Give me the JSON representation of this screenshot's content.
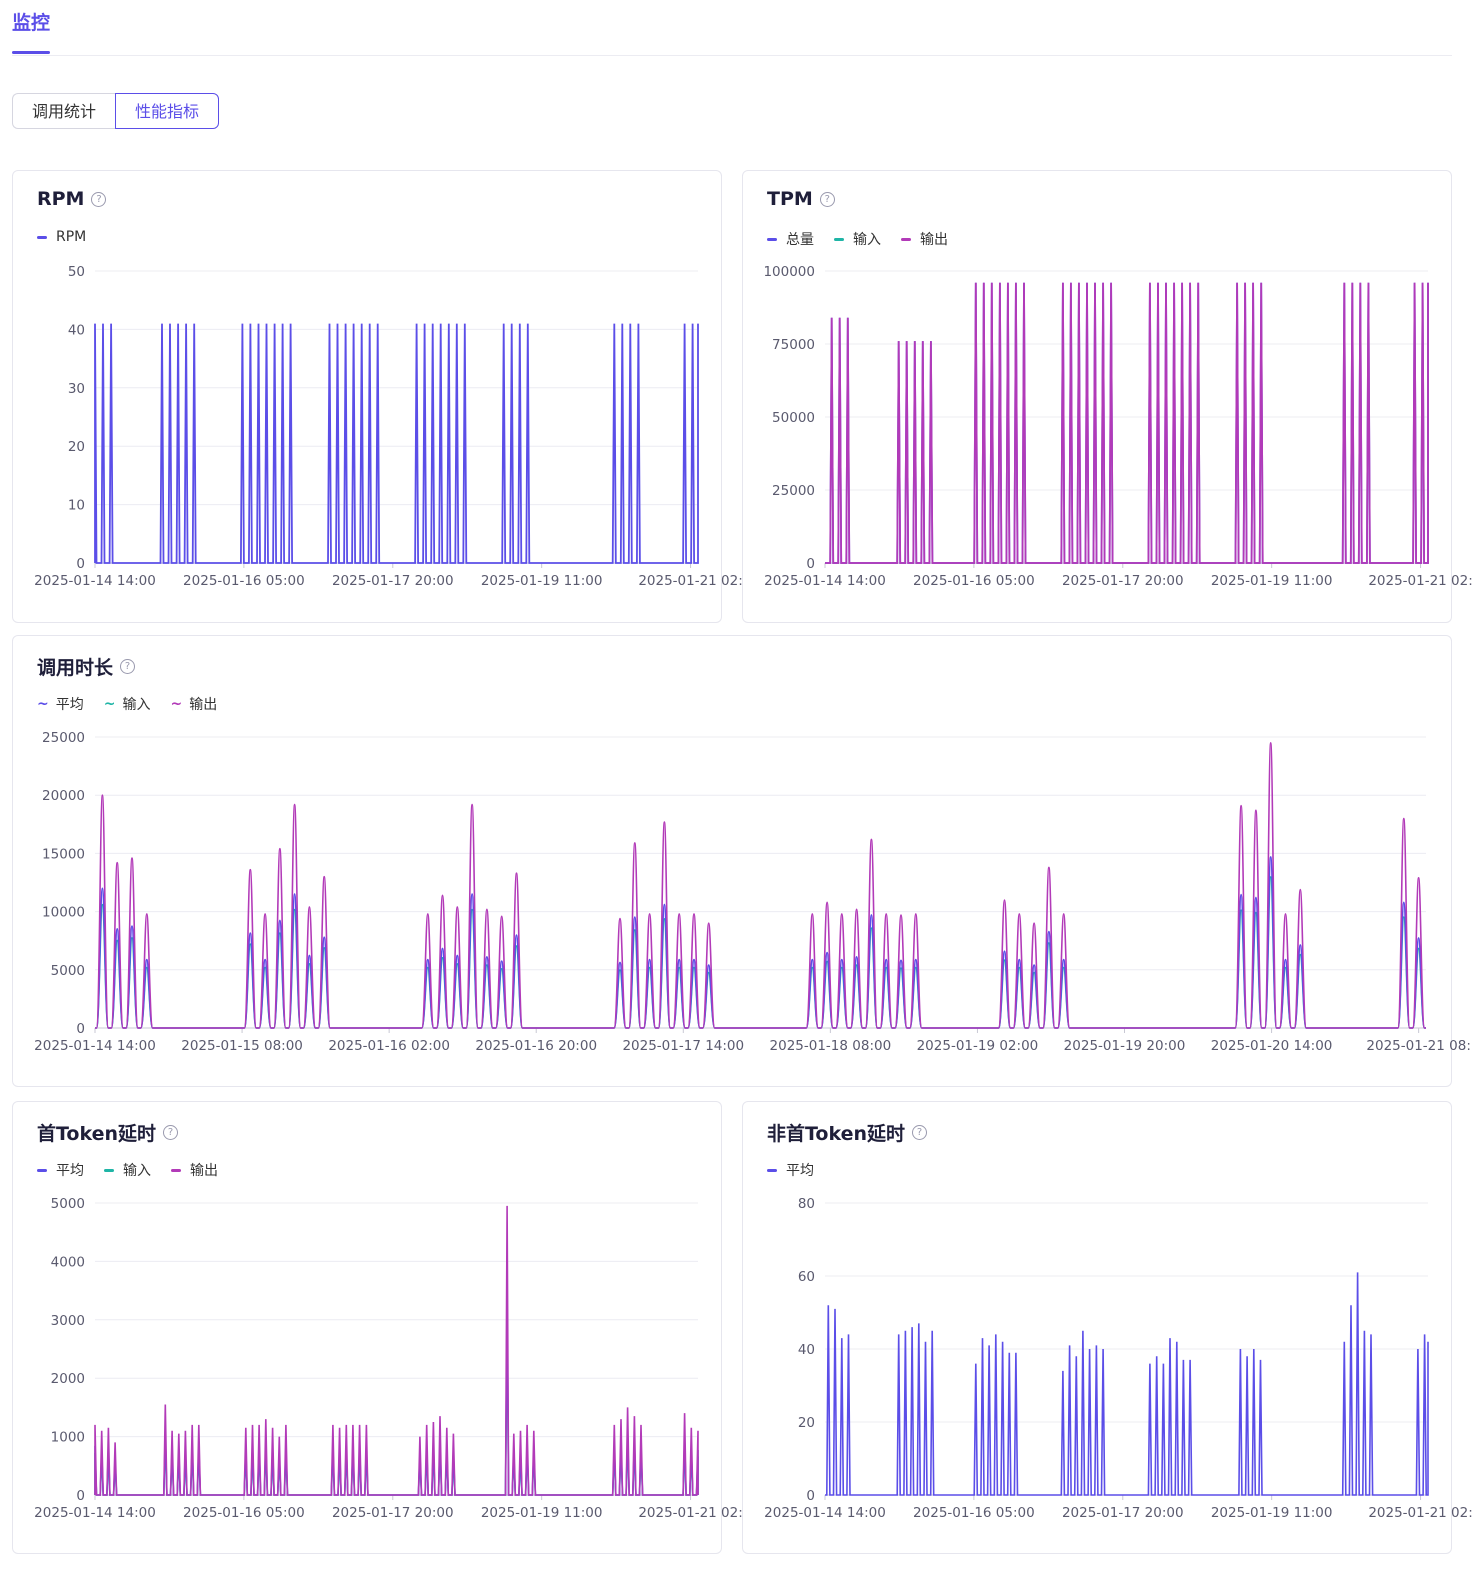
{
  "page": {
    "active_tab": "监控"
  },
  "segment": {
    "items": [
      "调用统计",
      "性能指标"
    ],
    "selected": "性能指标"
  },
  "icons": {
    "help": "help-circle-icon"
  },
  "colors": {
    "accent": "#5b4ee8",
    "avg": "#5b4ee8",
    "input": "#1fb5a6",
    "output": "#b23ab8",
    "grid": "#ececf2",
    "axis_text": "#5a5a6e"
  },
  "charts": {
    "rpm": {
      "title": "RPM",
      "legend": [
        {
          "label": "RPM",
          "color": "#5b4ee8",
          "style": "line"
        }
      ],
      "chart_data": {
        "type": "line",
        "yticks": [
          "0",
          "10",
          "20",
          "30",
          "40",
          "50"
        ],
        "ylim": [
          0,
          50
        ],
        "xticks": [
          "2025-01-14 14:00",
          "2025-01-16 05:00",
          "2025-01-17 20:00",
          "2025-01-19 11:00",
          "2025-01-21 02:"
        ],
        "xlim": [
          0,
          180
        ],
        "series": [
          {
            "name": "RPM",
            "color": "#5b4ee8",
            "bursts": [
              [
                0,
                3,
                41
              ],
              [
                20,
                5,
                41
              ],
              [
                44,
                7,
                41
              ],
              [
                70,
                7,
                41
              ],
              [
                96,
                7,
                41
              ],
              [
                122,
                4,
                41
              ],
              [
                155,
                4,
                41
              ],
              [
                176,
                3,
                41
              ]
            ],
            "spacing": 2.4
          }
        ]
      }
    },
    "tpm": {
      "title": "TPM",
      "legend": [
        {
          "label": "总量",
          "color": "#5b4ee8",
          "style": "line"
        },
        {
          "label": "输入",
          "color": "#1fb5a6",
          "style": "line"
        },
        {
          "label": "输出",
          "color": "#b23ab8",
          "style": "line"
        }
      ],
      "chart_data": {
        "type": "line",
        "yticks": [
          "0",
          "25000",
          "50000",
          "75000",
          "100000"
        ],
        "ylim": [
          0,
          100000
        ],
        "xticks": [
          "2025-01-14 14:00",
          "2025-01-16 05:00",
          "2025-01-17 20:00",
          "2025-01-19 11:00",
          "2025-01-21 02:"
        ],
        "xlim": [
          0,
          180
        ],
        "series": [
          {
            "name": "总量",
            "color": "#5b4ee8",
            "bursts": [
              [
                2,
                3,
                84000
              ],
              [
                22,
                5,
                76000
              ],
              [
                45,
                7,
                96000
              ],
              [
                71,
                7,
                96000
              ],
              [
                97,
                7,
                96000
              ],
              [
                123,
                4,
                96000
              ],
              [
                155,
                4,
                96000
              ],
              [
                176,
                3,
                96000
              ]
            ],
            "spacing": 2.4
          },
          {
            "name": "输出",
            "color": "#b23ab8",
            "bursts": [
              [
                2,
                3,
                84000
              ],
              [
                22,
                5,
                76000
              ],
              [
                45,
                7,
                96000
              ],
              [
                71,
                7,
                96000
              ],
              [
                97,
                7,
                96000
              ],
              [
                123,
                4,
                96000
              ],
              [
                155,
                4,
                96000
              ],
              [
                176,
                3,
                96000
              ]
            ],
            "spacing": 2.4
          }
        ]
      }
    },
    "duration": {
      "title": "调用时长",
      "legend": [
        {
          "label": "平均",
          "color": "#5b4ee8",
          "style": "wave"
        },
        {
          "label": "输入",
          "color": "#1fb5a6",
          "style": "wave"
        },
        {
          "label": "输出",
          "color": "#b23ab8",
          "style": "wave"
        }
      ],
      "chart_data": {
        "type": "line",
        "yticks": [
          "0",
          "5000",
          "10000",
          "15000",
          "20000",
          "25000"
        ],
        "ylim": [
          0,
          25000
        ],
        "xticks": [
          "2025-01-14 14:00",
          "2025-01-15 08:00",
          "2025-01-16 02:00",
          "2025-01-16 20:00",
          "2025-01-17 14:00",
          "2025-01-18 08:00",
          "2025-01-19 02:00",
          "2025-01-19 20:00",
          "2025-01-20 14:00",
          "2025-01-21 08:"
        ],
        "xlim": [
          0,
          180
        ],
        "output_peaks": [
          [
            1,
            20000
          ],
          [
            3,
            14200
          ],
          [
            5,
            14600
          ],
          [
            7,
            9800
          ],
          [
            21,
            13600
          ],
          [
            23,
            9800
          ],
          [
            25,
            15400
          ],
          [
            27,
            19200
          ],
          [
            29,
            10400
          ],
          [
            31,
            13000
          ],
          [
            45,
            9800
          ],
          [
            47,
            11400
          ],
          [
            49,
            10400
          ],
          [
            51,
            19200
          ],
          [
            53,
            10200
          ],
          [
            55,
            9600
          ],
          [
            57,
            13300
          ],
          [
            71,
            9400
          ],
          [
            73,
            15900
          ],
          [
            75,
            9800
          ],
          [
            77,
            17700
          ],
          [
            79,
            9800
          ],
          [
            81,
            9800
          ],
          [
            83,
            9000
          ],
          [
            97,
            9800
          ],
          [
            99,
            10800
          ],
          [
            101,
            9800
          ],
          [
            103,
            10200
          ],
          [
            105,
            16200
          ],
          [
            107,
            9800
          ],
          [
            109,
            9700
          ],
          [
            111,
            9800
          ],
          [
            123,
            11000
          ],
          [
            125,
            9800
          ],
          [
            127,
            9000
          ],
          [
            129,
            13800
          ],
          [
            131,
            9800
          ],
          [
            155,
            19100
          ],
          [
            157,
            18700
          ],
          [
            159,
            24500
          ],
          [
            161,
            9800
          ],
          [
            163,
            11900
          ],
          [
            177,
            18000
          ],
          [
            179,
            12900
          ]
        ],
        "avg_ratio": 0.6,
        "input_ratio": 0.53
      }
    },
    "first_token": {
      "title": "首Token延时",
      "legend": [
        {
          "label": "平均",
          "color": "#5b4ee8",
          "style": "line"
        },
        {
          "label": "输入",
          "color": "#1fb5a6",
          "style": "line"
        },
        {
          "label": "输出",
          "color": "#b23ab8",
          "style": "line"
        }
      ],
      "chart_data": {
        "type": "line",
        "yticks": [
          "0",
          "1000",
          "2000",
          "3000",
          "4000",
          "5000"
        ],
        "ylim": [
          0,
          5000
        ],
        "xticks": [
          "2025-01-14 14:00",
          "2025-01-16 05:00",
          "2025-01-17 20:00",
          "2025-01-19 11:00",
          "2025-01-21 02:"
        ],
        "xlim": [
          0,
          180
        ],
        "output_peaks": [
          [
            0,
            1200
          ],
          [
            2,
            1100
          ],
          [
            4,
            1150
          ],
          [
            6,
            900
          ],
          [
            21,
            1550
          ],
          [
            23,
            1100
          ],
          [
            25,
            1050
          ],
          [
            27,
            1100
          ],
          [
            29,
            1200
          ],
          [
            31,
            1200
          ],
          [
            45,
            1150
          ],
          [
            47,
            1200
          ],
          [
            49,
            1200
          ],
          [
            51,
            1300
          ],
          [
            53,
            1150
          ],
          [
            55,
            1000
          ],
          [
            57,
            1200
          ],
          [
            71,
            1200
          ],
          [
            73,
            1150
          ],
          [
            75,
            1200
          ],
          [
            77,
            1200
          ],
          [
            79,
            1200
          ],
          [
            81,
            1200
          ],
          [
            97,
            1000
          ],
          [
            99,
            1200
          ],
          [
            101,
            1250
          ],
          [
            103,
            1350
          ],
          [
            105,
            1150
          ],
          [
            107,
            1050
          ],
          [
            123,
            4950
          ],
          [
            125,
            1050
          ],
          [
            127,
            1100
          ],
          [
            129,
            1200
          ],
          [
            131,
            1100
          ],
          [
            155,
            1200
          ],
          [
            157,
            1300
          ],
          [
            159,
            1500
          ],
          [
            161,
            1350
          ],
          [
            163,
            1200
          ],
          [
            176,
            1400
          ],
          [
            178,
            1150
          ],
          [
            180,
            1100
          ]
        ],
        "avg_ratio": 0.7,
        "input_ratio": 0.6
      }
    },
    "non_first_token": {
      "title": "非首Token延时",
      "legend": [
        {
          "label": "平均",
          "color": "#5b4ee8",
          "style": "line"
        }
      ],
      "chart_data": {
        "type": "line",
        "yticks": [
          "0",
          "20",
          "40",
          "60",
          "80"
        ],
        "ylim": [
          0,
          80
        ],
        "xticks": [
          "2025-01-14 14:00",
          "2025-01-16 05:00",
          "2025-01-17 20:00",
          "2025-01-19 11:00",
          "2025-01-21 02:"
        ],
        "xlim": [
          0,
          180
        ],
        "peaks": [
          [
            1,
            52
          ],
          [
            3,
            51
          ],
          [
            5,
            43
          ],
          [
            7,
            44
          ],
          [
            22,
            44
          ],
          [
            24,
            45
          ],
          [
            26,
            46
          ],
          [
            28,
            47
          ],
          [
            30,
            42
          ],
          [
            32,
            45
          ],
          [
            45,
            36
          ],
          [
            47,
            43
          ],
          [
            49,
            41
          ],
          [
            51,
            44
          ],
          [
            53,
            42
          ],
          [
            55,
            39
          ],
          [
            57,
            39
          ],
          [
            71,
            34
          ],
          [
            73,
            41
          ],
          [
            75,
            38
          ],
          [
            77,
            45
          ],
          [
            79,
            40
          ],
          [
            81,
            41
          ],
          [
            83,
            40
          ],
          [
            97,
            36
          ],
          [
            99,
            38
          ],
          [
            101,
            36
          ],
          [
            103,
            43
          ],
          [
            105,
            42
          ],
          [
            107,
            37
          ],
          [
            109,
            37
          ],
          [
            124,
            40
          ],
          [
            126,
            38
          ],
          [
            128,
            40
          ],
          [
            130,
            37
          ],
          [
            155,
            42
          ],
          [
            157,
            52
          ],
          [
            159,
            61
          ],
          [
            161,
            45
          ],
          [
            163,
            44
          ],
          [
            177,
            40
          ],
          [
            179,
            44
          ],
          [
            181,
            42
          ]
        ]
      }
    }
  }
}
